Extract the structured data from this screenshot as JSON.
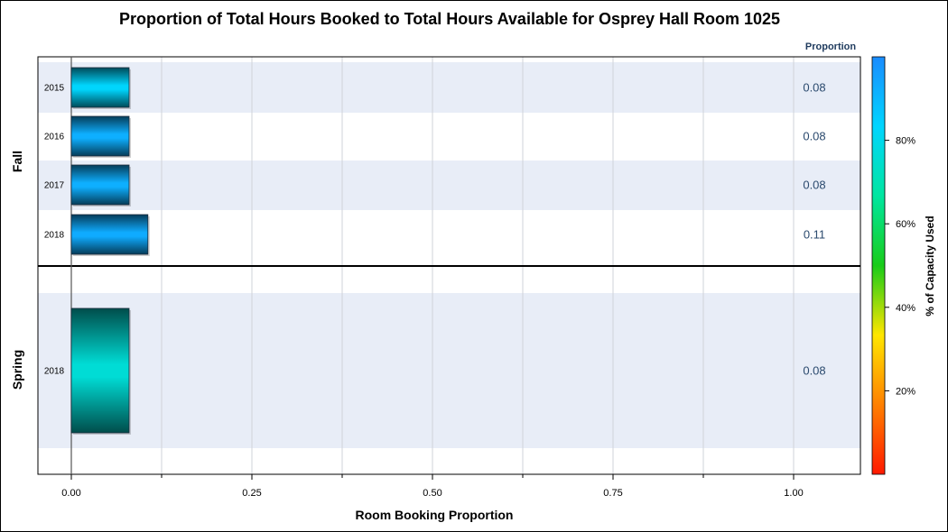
{
  "chart_data": {
    "type": "bar",
    "orientation": "horizontal",
    "title": "Proportion of Total Hours Booked to Total Hours Available for Osprey Hall Room 1025",
    "xlabel": "Room Booking Proportion",
    "xlim": [
      0,
      1.0
    ],
    "xticks": [
      "0.00",
      "0.25",
      "0.50",
      "0.75",
      "1.00"
    ],
    "value_column_title": "Proportion",
    "groups": [
      {
        "name": "Fall",
        "bars": [
          {
            "category": "2015",
            "value": 0.08,
            "label": "0.08",
            "capacity_pct": 83
          },
          {
            "category": "2016",
            "value": 0.08,
            "label": "0.08",
            "capacity_pct": 92
          },
          {
            "category": "2017",
            "value": 0.08,
            "label": "0.08",
            "capacity_pct": 92
          },
          {
            "category": "2018",
            "value": 0.106,
            "label": "0.11",
            "capacity_pct": 93
          }
        ]
      },
      {
        "name": "Spring",
        "bars": [
          {
            "category": "2018",
            "value": 0.08,
            "label": "0.08",
            "capacity_pct": 76
          }
        ]
      }
    ],
    "colorbar": {
      "title": "% of Capacity Used",
      "ticks": [
        "20%",
        "40%",
        "60%",
        "80%"
      ],
      "tick_values": [
        20,
        40,
        60,
        80
      ],
      "range": [
        0,
        100
      ],
      "colors": [
        "#ff1a00",
        "#ff8000",
        "#ffe600",
        "#19cc19",
        "#00e6a0",
        "#00d5ff",
        "#1a8cff"
      ]
    },
    "colors": {
      "band": "#e8edf7",
      "grid": "#cfd3d8",
      "value_text": "#2b4a6e",
      "header_text": "#1f3b5e"
    }
  }
}
